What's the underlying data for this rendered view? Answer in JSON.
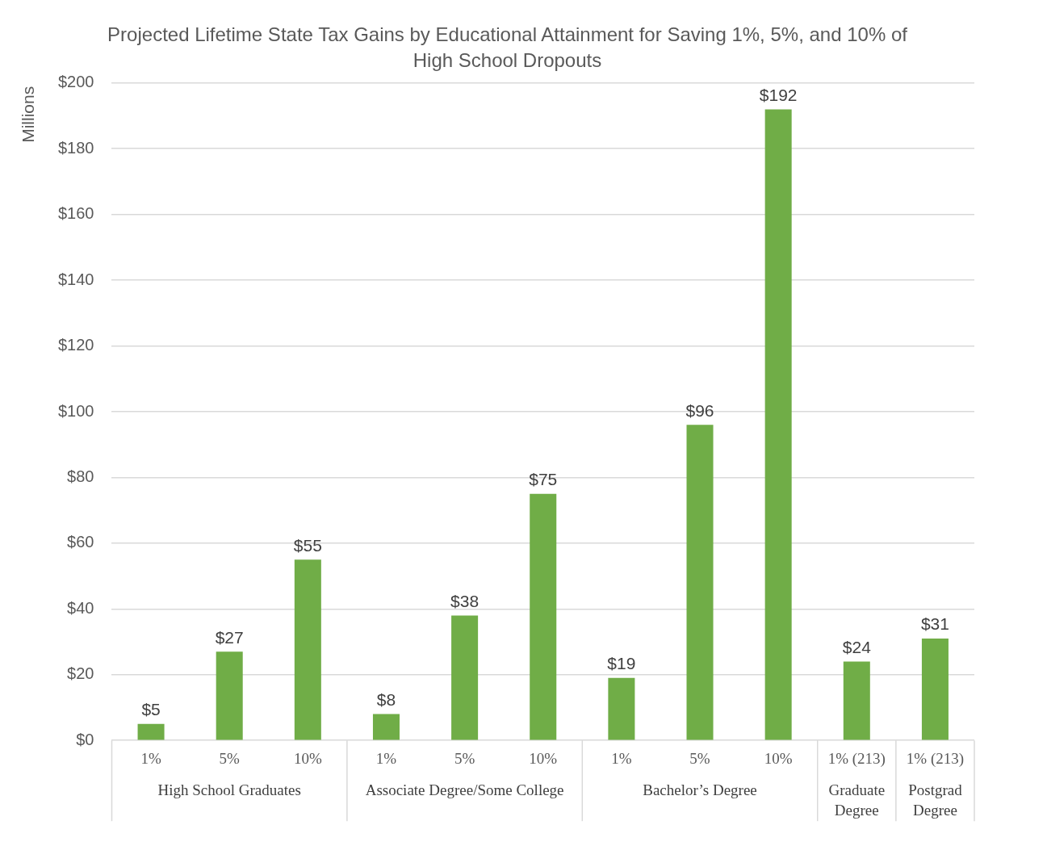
{
  "chart_data": {
    "type": "bar",
    "title": "Projected Lifetime State Tax Gains by Educational Attainment for Saving 1%, 5%, and 10% of High School Dropouts",
    "ylabel": "Millions",
    "categories": [
      "1%",
      "5%",
      "10%",
      "1%",
      "5%",
      "10%",
      "1%",
      "5%",
      "10%",
      "1% (213)",
      "1% (213)"
    ],
    "values": [
      5,
      27,
      55,
      8,
      38,
      75,
      19,
      96,
      192,
      24,
      31
    ],
    "value_labels": [
      "$5",
      "$27",
      "$55",
      "$8",
      "$38",
      "$75",
      "$19",
      "$96",
      "$192",
      "$24",
      "$31"
    ],
    "color": "#70ad47",
    "ylim": [
      0,
      200
    ],
    "yticks": [
      {
        "value": 0,
        "label": "$0"
      },
      {
        "value": 20,
        "label": "$20"
      },
      {
        "value": 40,
        "label": "$40"
      },
      {
        "value": 60,
        "label": "$60"
      },
      {
        "value": 80,
        "label": "$80"
      },
      {
        "value": 100,
        "label": "$100"
      },
      {
        "value": 120,
        "label": "$120"
      },
      {
        "value": 140,
        "label": "$140"
      },
      {
        "value": 160,
        "label": "$160"
      },
      {
        "value": 180,
        "label": "$180"
      },
      {
        "value": 200,
        "label": "$200"
      }
    ],
    "grid": "y",
    "annotations": [
      "High School Graduates",
      "Associate Degree/Some College",
      "Bachelor’s Degree",
      "Graduate Degree",
      "Postgrad Degree"
    ]
  }
}
